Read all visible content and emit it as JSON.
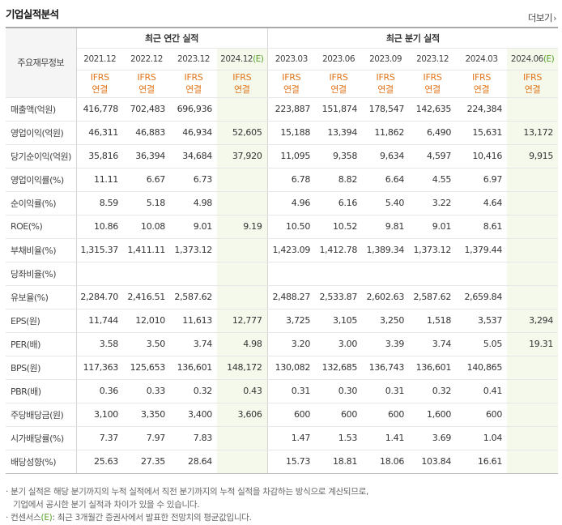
{
  "title": "기업실적분석",
  "more_label": "더보기",
  "more_icon": "chevron-right-icon",
  "corner_label": "주요재무정보",
  "annual_title": "최근 연간 실적",
  "quarter_title": "최근 분기 실적",
  "ifrs_top": "IFRS",
  "ifrs_bottom": "연결",
  "annual_periods": [
    {
      "label": "2021.12",
      "est": ""
    },
    {
      "label": "2022.12",
      "est": ""
    },
    {
      "label": "2023.12",
      "est": ""
    },
    {
      "label": "2024.12",
      "est": "(E)"
    }
  ],
  "quarter_periods": [
    {
      "label": "2023.03",
      "est": ""
    },
    {
      "label": "2023.06",
      "est": ""
    },
    {
      "label": "2023.09",
      "est": ""
    },
    {
      "label": "2023.12",
      "est": ""
    },
    {
      "label": "2024.03",
      "est": ""
    },
    {
      "label": "2024.06",
      "est": "(E)"
    }
  ],
  "rows": [
    {
      "label": "매출액(억원)",
      "annual": [
        "416,778",
        "702,483",
        "696,936",
        ""
      ],
      "quarter": [
        "223,887",
        "151,874",
        "178,547",
        "142,635",
        "224,384",
        ""
      ]
    },
    {
      "label": "영업이익(억원)",
      "annual": [
        "46,311",
        "46,883",
        "46,934",
        "52,605"
      ],
      "quarter": [
        "15,188",
        "13,394",
        "11,862",
        "6,490",
        "15,631",
        "13,172"
      ]
    },
    {
      "label": "당기순이익(억원)",
      "annual": [
        "35,816",
        "36,394",
        "34,684",
        "37,920"
      ],
      "quarter": [
        "11,095",
        "9,358",
        "9,634",
        "4,597",
        "10,416",
        "9,915"
      ]
    },
    {
      "label": "영업이익률(%)",
      "annual": [
        "11.11",
        "6.67",
        "6.73",
        ""
      ],
      "quarter": [
        "6.78",
        "8.82",
        "6.64",
        "4.55",
        "6.97",
        ""
      ]
    },
    {
      "label": "순이익률(%)",
      "annual": [
        "8.59",
        "5.18",
        "4.98",
        ""
      ],
      "quarter": [
        "4.96",
        "6.16",
        "5.40",
        "3.22",
        "4.64",
        ""
      ]
    },
    {
      "label": "ROE(%)",
      "annual": [
        "10.86",
        "10.08",
        "9.01",
        "9.19"
      ],
      "quarter": [
        "10.50",
        "10.52",
        "9.81",
        "9.01",
        "8.61",
        ""
      ]
    },
    {
      "label": "부채비율(%)",
      "annual": [
        "1,315.37",
        "1,411.11",
        "1,373.12",
        ""
      ],
      "quarter": [
        "1,423.09",
        "1,412.78",
        "1,389.34",
        "1,373.12",
        "1,379.44",
        ""
      ]
    },
    {
      "label": "당좌비율(%)",
      "annual": [
        "",
        "",
        "",
        ""
      ],
      "quarter": [
        "",
        "",
        "",
        "",
        "",
        ""
      ]
    },
    {
      "label": "유보율(%)",
      "annual": [
        "2,284.70",
        "2,416.51",
        "2,587.62",
        ""
      ],
      "quarter": [
        "2,488.27",
        "2,533.87",
        "2,602.63",
        "2,587.62",
        "2,659.84",
        ""
      ]
    },
    {
      "label": "EPS(원)",
      "annual": [
        "11,744",
        "12,010",
        "11,613",
        "12,777"
      ],
      "quarter": [
        "3,725",
        "3,105",
        "3,250",
        "1,518",
        "3,537",
        "3,294"
      ]
    },
    {
      "label": "PER(배)",
      "annual": [
        "3.58",
        "3.50",
        "3.74",
        "4.98"
      ],
      "quarter": [
        "3.20",
        "3.00",
        "3.39",
        "3.74",
        "5.05",
        "19.31"
      ]
    },
    {
      "label": "BPS(원)",
      "annual": [
        "117,363",
        "125,653",
        "136,601",
        "148,172"
      ],
      "quarter": [
        "130,082",
        "132,685",
        "136,743",
        "136,601",
        "140,865",
        ""
      ]
    },
    {
      "label": "PBR(배)",
      "annual": [
        "0.36",
        "0.33",
        "0.32",
        "0.43"
      ],
      "quarter": [
        "0.31",
        "0.30",
        "0.31",
        "0.32",
        "0.41",
        ""
      ]
    },
    {
      "label": "주당배당금(원)",
      "annual": [
        "3,100",
        "3,350",
        "3,400",
        "3,606"
      ],
      "quarter": [
        "600",
        "600",
        "600",
        "1,600",
        "600",
        ""
      ]
    },
    {
      "label": "시가배당률(%)",
      "annual": [
        "7.37",
        "7.97",
        "7.83",
        ""
      ],
      "quarter": [
        "1.47",
        "1.53",
        "1.41",
        "3.69",
        "1.04",
        ""
      ]
    },
    {
      "label": "배당성향(%)",
      "annual": [
        "25.63",
        "27.35",
        "28.64",
        ""
      ],
      "quarter": [
        "15.73",
        "18.81",
        "18.06",
        "103.84",
        "16.61",
        ""
      ]
    }
  ],
  "group_starts": [
    3,
    6,
    9,
    13
  ],
  "notes": {
    "line1": "분기 실적은 해당 분기까지의 누적 실적에서 직전 분기까지의 누적 실적을 차감하는 방식으로 계산되므로,",
    "line2": "기업에서 공시한 분기 실적과 차이가 있을 수 있습니다.",
    "line3_pre": "컨센서스",
    "line3_mark": "(E)",
    "line3_post": ": 최근 3개월간 증권사에서 발표한 전망치의 평균값입니다."
  },
  "colors": {
    "ifrs": "#e1751b",
    "estimate_bg": "#f4f9ec",
    "estimate_mark": "#5aa22e"
  }
}
